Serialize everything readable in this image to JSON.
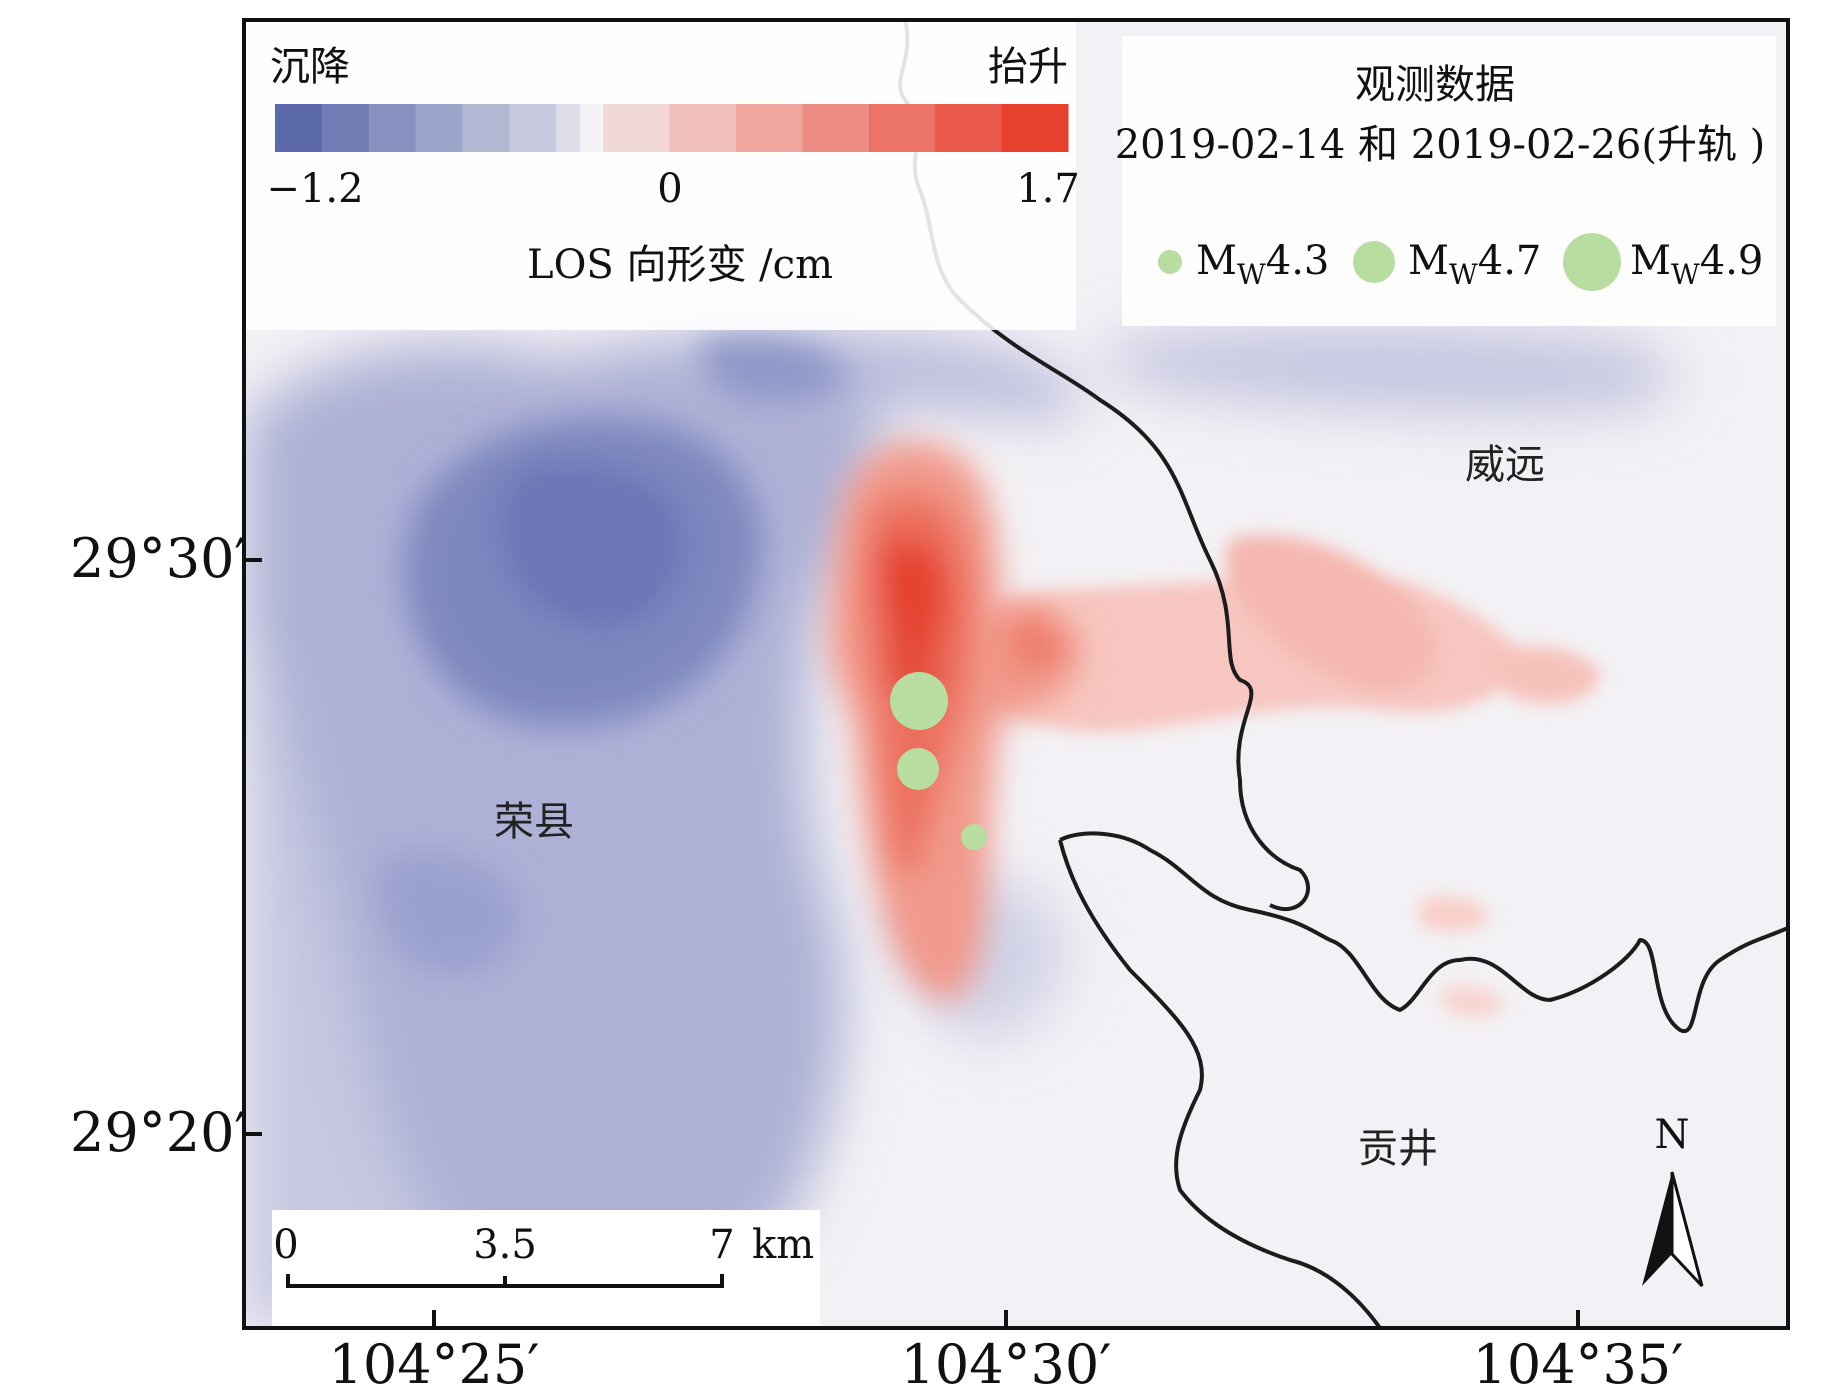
{
  "map": {
    "longitude_ticks": [
      "104°25′",
      "104°30′",
      "104°35′"
    ],
    "latitude_ticks": [
      "29°30′",
      "29°20′"
    ],
    "places": [
      {
        "name": "荣县"
      },
      {
        "name": "威远"
      },
      {
        "name": "贡井"
      }
    ]
  },
  "colorbar": {
    "label_left": "沉降",
    "label_right": "抬升",
    "min_label": "−1.2",
    "mid_label": "0",
    "max_label": "1.7",
    "title": "LOS 向形变 /cm",
    "min_value": -1.2,
    "max_value": 1.7,
    "color_low": "#5b6aaa",
    "color_zero": "#f4f2f4",
    "color_high": "#e8412e"
  },
  "legend": {
    "title": "观测数据",
    "subtitle": "2019-02-14 和 2019-02-26(升轨 )",
    "items": [
      {
        "prefix": "M",
        "subscript": "W",
        "value": "4.3"
      },
      {
        "prefix": "M",
        "subscript": "W",
        "value": "4.7"
      },
      {
        "prefix": "M",
        "subscript": "W",
        "value": "4.9"
      }
    ],
    "marker_color": "#b7dea0"
  },
  "earthquakes": [
    {
      "magnitude": 4.9
    },
    {
      "magnitude": 4.7
    },
    {
      "magnitude": 4.3
    }
  ],
  "scalebar": {
    "labels": [
      "0",
      "3.5",
      "7"
    ],
    "unit": "km"
  },
  "north_arrow": {
    "label": "N"
  }
}
